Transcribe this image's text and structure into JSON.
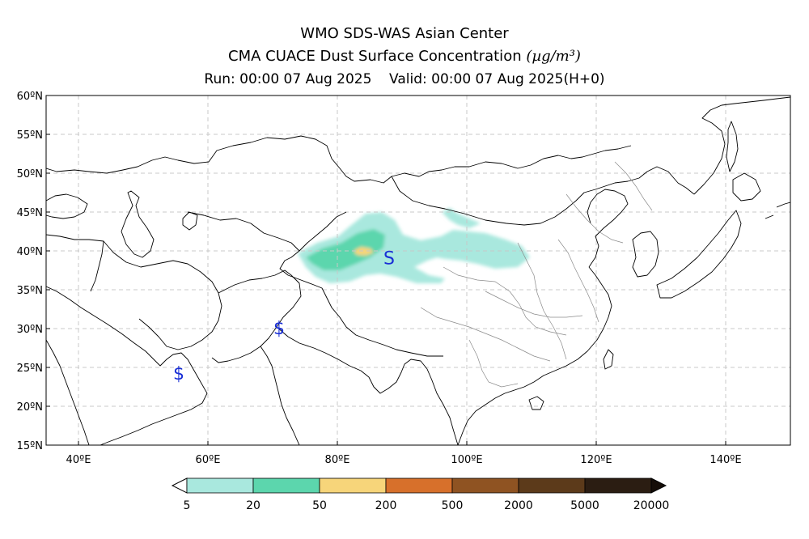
{
  "title": {
    "line1": "WMO SDS-WAS Asian Center",
    "line2": "CMA CUACE Dust Surface Concentration",
    "unit": "(µg/m³)",
    "line3": "Run: 00:00 07 Aug 2025    Valid: 00:00 07 Aug 2025(H+0)"
  },
  "map": {
    "lon_range": [
      35,
      150
    ],
    "lat_range": [
      15,
      60
    ],
    "lat_ticks": [
      "15ºN",
      "20ºN",
      "25ºN",
      "30ºN",
      "35ºN",
      "40ºN",
      "45ºN",
      "50ºN",
      "55ºN",
      "60ºN"
    ],
    "lon_ticks": [
      "40ºE",
      "60ºE",
      "80ºE",
      "100ºE",
      "120ºE",
      "140ºE"
    ],
    "grid": "dashed",
    "markers": [
      {
        "symbol": "S",
        "lon": 88,
        "lat": 39.2
      },
      {
        "symbol": "$",
        "lon": 71,
        "lat": 30.2
      },
      {
        "symbol": "$",
        "lon": 55.5,
        "lat": 24.4
      }
    ]
  },
  "legend": {
    "labels": [
      "5",
      "20",
      "50",
      "200",
      "500",
      "2000",
      "5000",
      "20000"
    ],
    "colors": [
      "#a9e8de",
      "#5cd6ad",
      "#f7d57a",
      "#d7702b",
      "#8f5322",
      "#5c3a1a",
      "#2b1d12"
    ],
    "under_color": "#ffffff",
    "over_color": "#150d08"
  },
  "colors": {
    "dust_low": "#a9e8de",
    "dust_mid": "#5cd6ad",
    "dust_high": "#f7d57a",
    "marker": "#1a2fd6"
  }
}
